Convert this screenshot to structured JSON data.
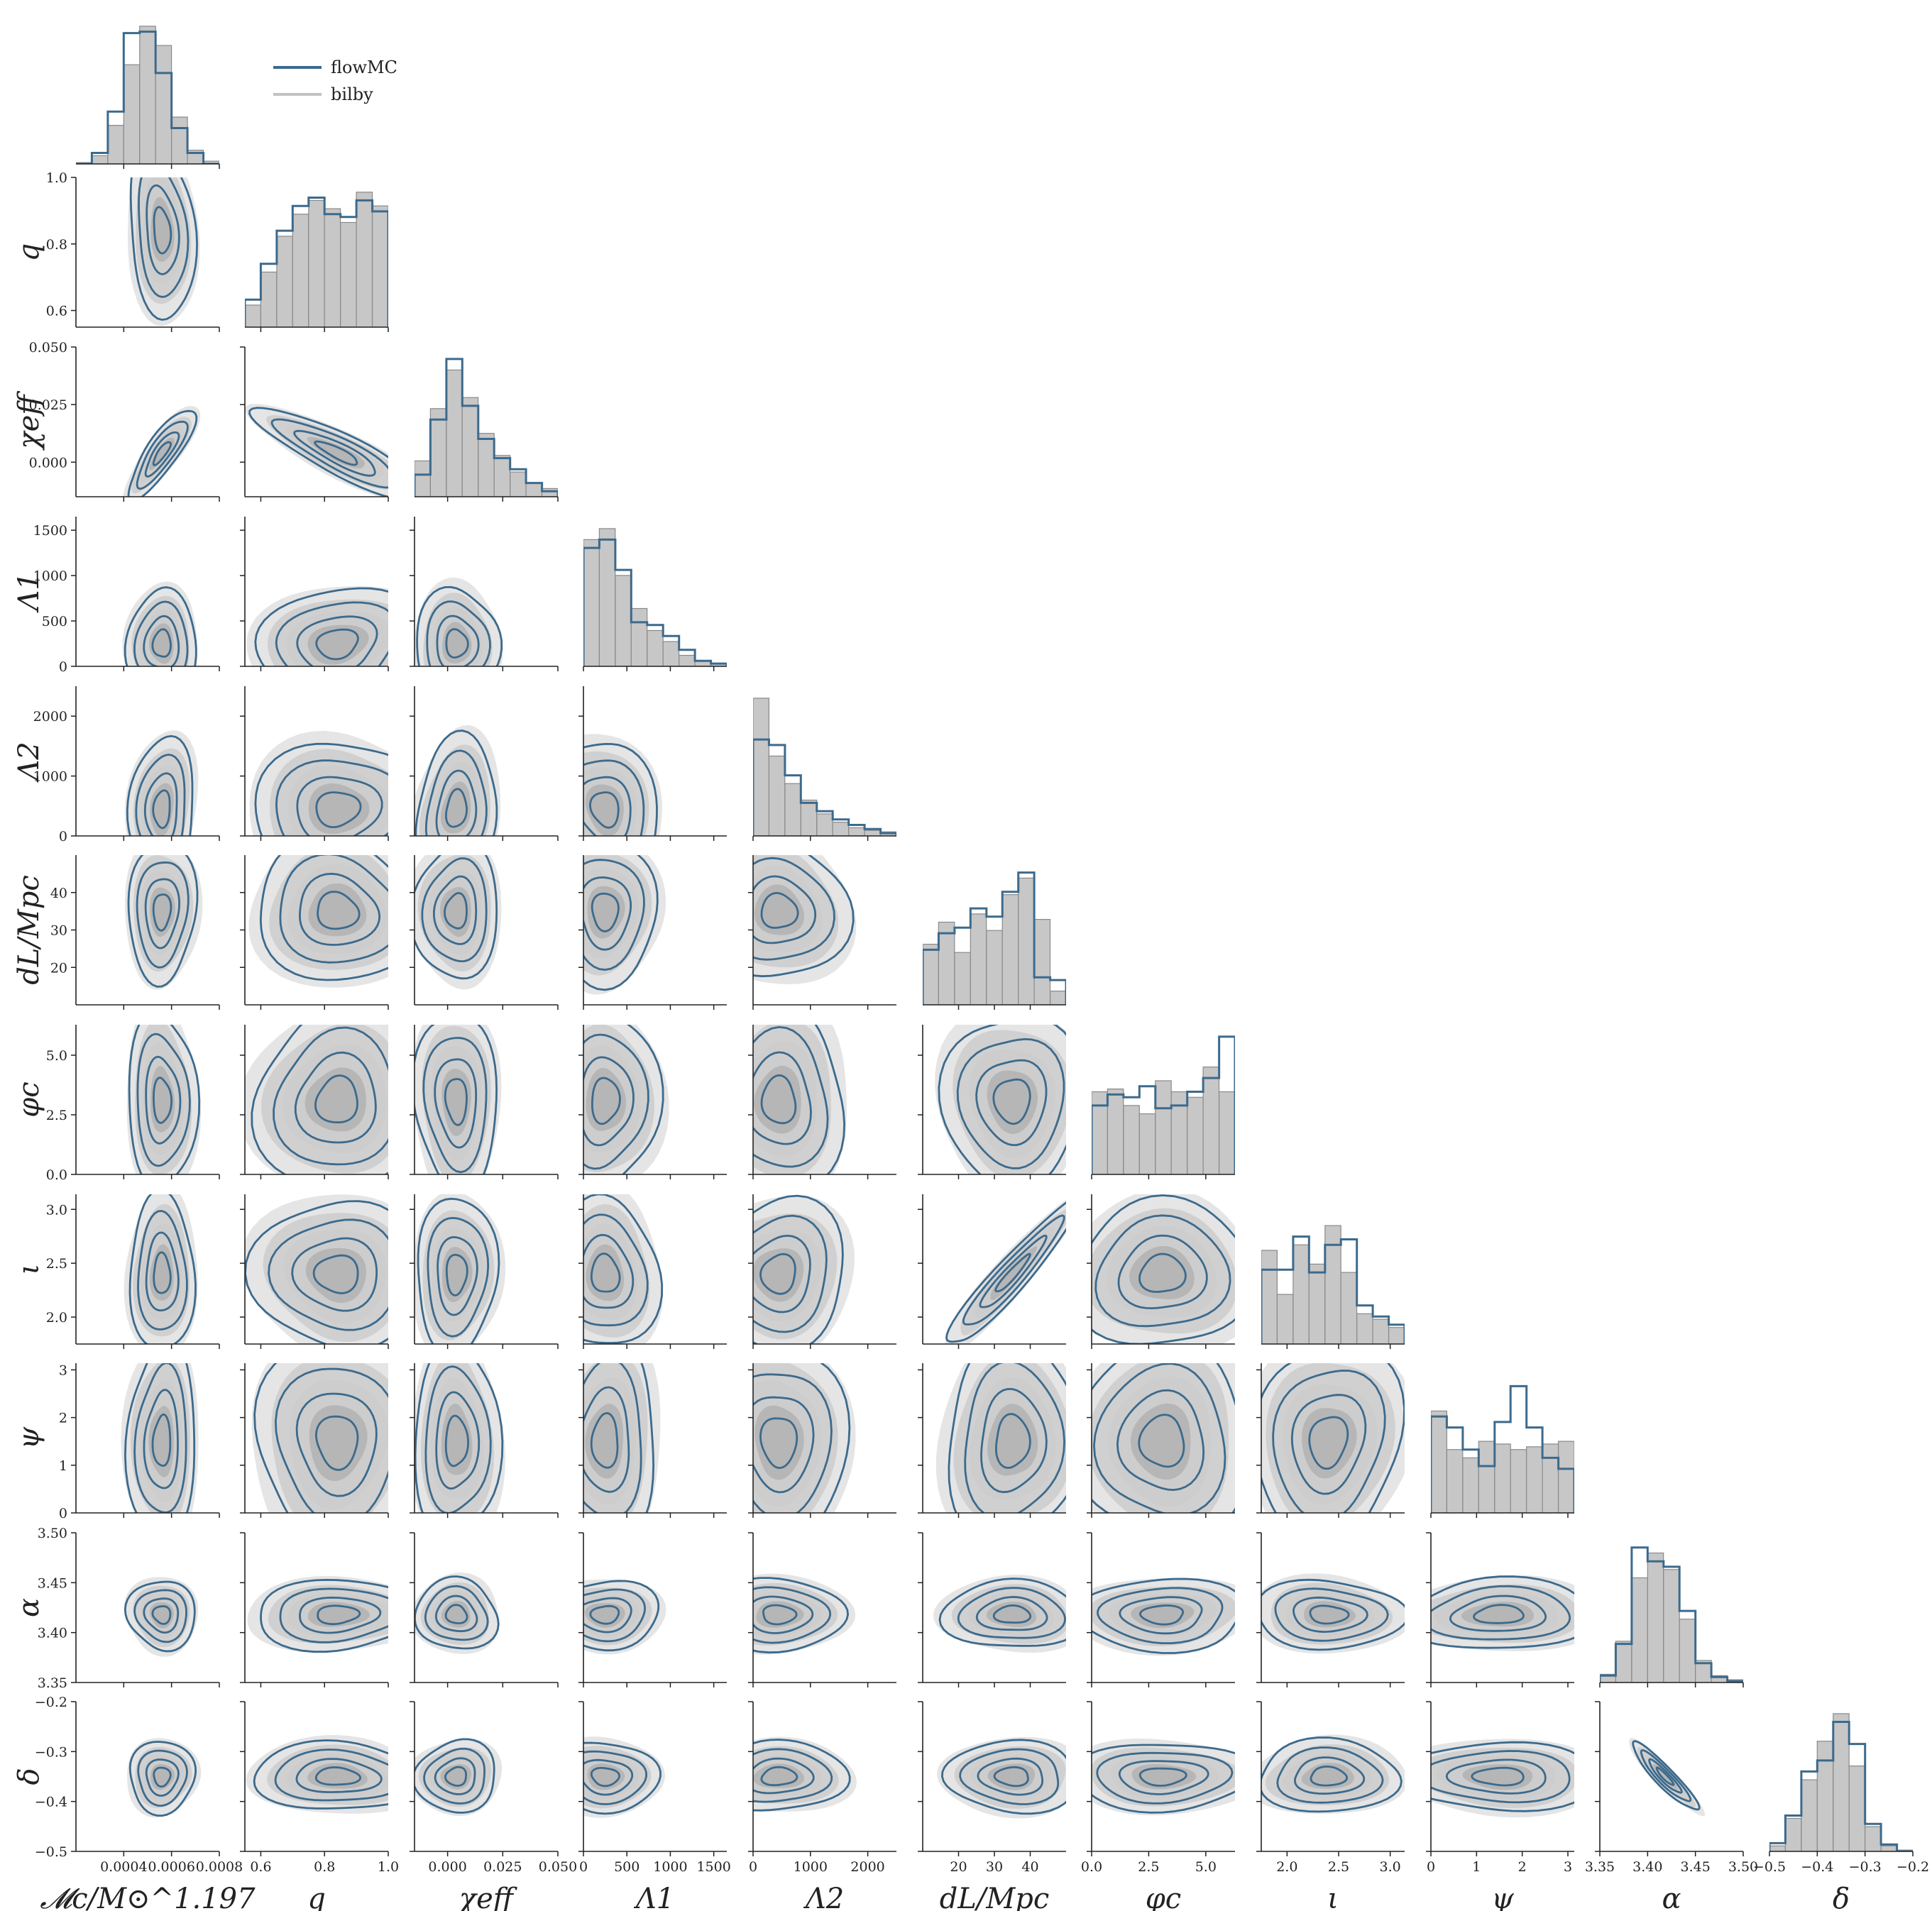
{
  "legend": {
    "entries": [
      {
        "name": "flowMC",
        "color": "#3c6a8c"
      },
      {
        "name": "bilby",
        "color": "#c2c2c2"
      }
    ]
  },
  "colors": {
    "flowmc": "#3c6a8c",
    "bilby_fill": "#c7c7c7",
    "bilby_edge": "#8a8a8a",
    "kde_light": "#e1e1e1",
    "kde_mid": "#cdcdcd",
    "kde_dark": "#b2b2b2"
  },
  "chart_data": {
    "type": "corner",
    "legend_placement": "top-left",
    "grid": false,
    "parameters": [
      {
        "id": "mc",
        "label": "𝓜c/M⊙^1.197",
        "range": [
          0.0002,
          0.0008
        ],
        "ticks": [
          0.0004,
          0.0006,
          0.0008
        ],
        "tick_labels": [
          "0.0004",
          "0.0006",
          "0.0008"
        ],
        "mean": 0.00056,
        "sd": 6e-05,
        "hist_bilby": [
          0.01,
          0.06,
          0.28,
          0.72,
          1.0,
          0.86,
          0.34,
          0.1,
          0.02
        ],
        "hist_flowmc": [
          0.0,
          0.08,
          0.38,
          0.95,
          0.96,
          0.66,
          0.26,
          0.08,
          0.0
        ]
      },
      {
        "id": "q",
        "label": "q",
        "range": [
          0.55,
          1.0
        ],
        "ticks": [
          0.6,
          0.8,
          1.0
        ],
        "tick_labels": [
          "0.6",
          "0.8",
          "1.0"
        ],
        "mean": 0.84,
        "sd": 0.11,
        "hist_bilby": [
          0.16,
          0.4,
          0.66,
          0.82,
          0.92,
          0.86,
          0.76,
          0.98,
          0.88
        ],
        "hist_flowmc": [
          0.2,
          0.46,
          0.7,
          0.88,
          0.94,
          0.82,
          0.8,
          0.92,
          0.84
        ]
      },
      {
        "id": "chi",
        "label": "χeff",
        "range": [
          -0.015,
          0.05
        ],
        "ticks": [
          0.0,
          0.025,
          0.05
        ],
        "tick_labels": [
          "0.000",
          "0.025",
          "0.050"
        ],
        "mean": 0.004,
        "sd": 0.008,
        "hist_bilby": [
          0.26,
          0.64,
          0.92,
          0.72,
          0.46,
          0.3,
          0.18,
          0.1,
          0.06
        ],
        "hist_flowmc": [
          0.16,
          0.56,
          1.0,
          0.66,
          0.42,
          0.28,
          0.2,
          0.1,
          0.04
        ]
      },
      {
        "id": "l1",
        "label": "Λ1",
        "range": [
          0,
          1650
        ],
        "ticks": [
          0,
          500,
          1000,
          1500
        ],
        "tick_labels": [
          "0",
          "500",
          "1000",
          "1500"
        ],
        "mean": 250,
        "sd": 260,
        "hist_bilby": [
          0.92,
          1.0,
          0.66,
          0.42,
          0.26,
          0.18,
          0.08,
          0.04,
          0.02
        ],
        "hist_flowmc": [
          0.86,
          0.92,
          0.7,
          0.32,
          0.3,
          0.22,
          0.12,
          0.04,
          0.02
        ]
      },
      {
        "id": "l2",
        "label": "Λ2",
        "range": [
          0,
          2500
        ],
        "ticks": [
          0,
          1000,
          2000
        ],
        "tick_labels": [
          "0",
          "1000",
          "2000"
        ],
        "mean": 450,
        "sd": 500,
        "hist_bilby": [
          1.0,
          0.58,
          0.38,
          0.26,
          0.16,
          0.1,
          0.06,
          0.04,
          0.03
        ],
        "hist_flowmc": [
          0.7,
          0.66,
          0.44,
          0.24,
          0.18,
          0.12,
          0.08,
          0.05,
          0.02
        ]
      },
      {
        "id": "dl",
        "label": "dL/Mpc",
        "range": [
          10,
          50
        ],
        "ticks": [
          20,
          30,
          40
        ],
        "tick_labels": [
          "20",
          "30",
          "40"
        ],
        "mean": 35,
        "sd": 8,
        "hist_bilby": [
          0.44,
          0.6,
          0.38,
          0.66,
          0.54,
          0.8,
          0.92,
          0.62,
          0.1
        ],
        "hist_flowmc": [
          0.4,
          0.52,
          0.56,
          0.7,
          0.64,
          0.82,
          0.96,
          0.2,
          0.18
        ]
      },
      {
        "id": "phi",
        "label": "φc",
        "range": [
          0,
          6.28
        ],
        "ticks": [
          0.0,
          2.5,
          5.0
        ],
        "tick_labels": [
          "0.0",
          "2.5",
          "5.0"
        ],
        "mean": 3.1,
        "sd": 1.6,
        "hist_bilby": [
          0.6,
          0.62,
          0.5,
          0.44,
          0.68,
          0.6,
          0.56,
          0.78,
          0.6
        ],
        "hist_flowmc": [
          0.5,
          0.58,
          0.56,
          0.64,
          0.48,
          0.5,
          0.6,
          0.7,
          1.0
        ]
      },
      {
        "id": "iota",
        "label": "ι",
        "range": [
          1.75,
          3.14
        ],
        "ticks": [
          2.0,
          2.5,
          3.0
        ],
        "tick_labels": [
          "2.0",
          "2.5",
          "3.0"
        ],
        "mean": 2.4,
        "sd": 0.3,
        "hist_bilby": [
          0.68,
          0.36,
          0.72,
          0.58,
          0.86,
          0.52,
          0.22,
          0.18,
          0.12
        ],
        "hist_flowmc": [
          0.54,
          0.54,
          0.78,
          0.52,
          0.72,
          0.76,
          0.28,
          0.2,
          0.14
        ]
      },
      {
        "id": "psi",
        "label": "ψ",
        "range": [
          0,
          3.14
        ],
        "ticks": [
          0,
          1,
          2,
          3
        ],
        "tick_labels": [
          "0",
          "1",
          "2",
          "3"
        ],
        "mean": 1.5,
        "sd": 0.9,
        "hist_bilby": [
          0.74,
          0.46,
          0.4,
          0.52,
          0.5,
          0.46,
          0.48,
          0.5,
          0.52
        ],
        "hist_flowmc": [
          0.7,
          0.62,
          0.46,
          0.34,
          0.66,
          0.92,
          0.62,
          0.4,
          0.32
        ]
      },
      {
        "id": "alpha",
        "label": "α",
        "range": [
          3.35,
          3.5
        ],
        "ticks": [
          3.35,
          3.4,
          3.45,
          3.5
        ],
        "tick_labels": [
          "3.35",
          "3.40",
          "3.45",
          "3.50"
        ],
        "mean": 3.418,
        "sd": 0.015,
        "hist_bilby": [
          0.06,
          0.3,
          0.76,
          0.94,
          0.82,
          0.46,
          0.16,
          0.05,
          0.02
        ],
        "hist_flowmc": [
          0.05,
          0.28,
          0.98,
          0.88,
          0.84,
          0.52,
          0.14,
          0.04,
          0.01
        ]
      },
      {
        "id": "delta",
        "label": "δ",
        "range": [
          -0.5,
          -0.2
        ],
        "ticks": [
          -0.5,
          -0.4,
          -0.3,
          -0.2
        ],
        "tick_labels": [
          "−0.5",
          "−0.4",
          "−0.3",
          "−0.2"
        ],
        "mean": -0.35,
        "sd": 0.03,
        "hist_bilby": [
          0.04,
          0.24,
          0.52,
          0.8,
          1.0,
          0.62,
          0.18,
          0.04,
          0.01
        ],
        "hist_flowmc": [
          0.06,
          0.26,
          0.58,
          0.66,
          0.94,
          0.78,
          0.2,
          0.05,
          0.0
        ]
      }
    ],
    "correlations": [
      {
        "i": 0,
        "j": 1,
        "rho": -0.15
      },
      {
        "i": 0,
        "j": 2,
        "rho": 0.82
      },
      {
        "i": 1,
        "j": 2,
        "rho": -0.85
      },
      {
        "i": 0,
        "j": 3,
        "rho": 0.05
      },
      {
        "i": 1,
        "j": 3,
        "rho": 0.1
      },
      {
        "i": 2,
        "j": 3,
        "rho": 0.05
      },
      {
        "i": 0,
        "j": 4,
        "rho": 0.15
      },
      {
        "i": 1,
        "j": 4,
        "rho": 0.05
      },
      {
        "i": 2,
        "j": 4,
        "rho": 0.15
      },
      {
        "i": 3,
        "j": 4,
        "rho": -0.1
      },
      {
        "i": 5,
        "j": 7,
        "rho": 0.95
      },
      {
        "i": 9,
        "j": 10,
        "rho": -0.93
      },
      {
        "i": 6,
        "j": 8,
        "rho": 0.05
      },
      {
        "i": 7,
        "j": 8,
        "rho": 0.05
      }
    ]
  }
}
